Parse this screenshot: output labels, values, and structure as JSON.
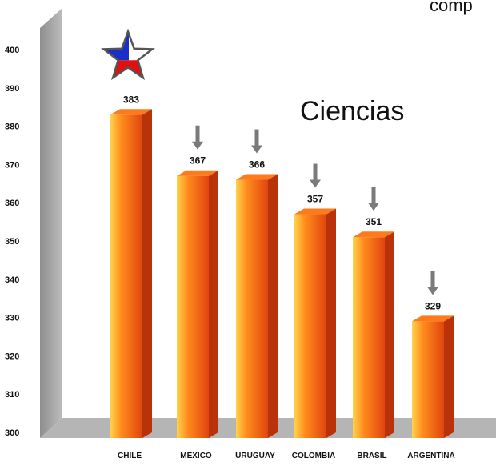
{
  "chart_data": {
    "type": "bar",
    "title": "Ciencias",
    "subtitle": "comp",
    "xlabel": "",
    "ylabel": "",
    "categories": [
      "CHILE",
      "MEXICO",
      "URUGUAY",
      "COLOMBIA",
      "BRASIL",
      "ARGENTINA"
    ],
    "values": [
      383,
      367,
      366,
      357,
      351,
      329
    ],
    "value_labels": [
      "383",
      "367",
      "366",
      "357",
      "351",
      "329"
    ],
    "ylim": [
      300,
      400
    ],
    "yticks": [
      "300",
      "310",
      "320",
      "330",
      "340",
      "350",
      "360",
      "370",
      "380",
      "390",
      "400"
    ],
    "markers": [
      "star",
      "down-arrow",
      "down-arrow",
      "down-arrow",
      "down-arrow",
      "down-arrow"
    ],
    "grid": false,
    "legend": "none",
    "colors": {
      "bar_light": "#FFD24A",
      "bar_mid": "#FF8A1C",
      "bar_dark": "#E0450F",
      "bar_side": "#B8320A",
      "bar_top": "#FF7A1A",
      "wall": "#A9A9A9",
      "arrow": "#7A7A7A",
      "star_blue": "#1A2FC8",
      "star_red": "#E01010",
      "star_white": "#FFFFFF"
    }
  }
}
